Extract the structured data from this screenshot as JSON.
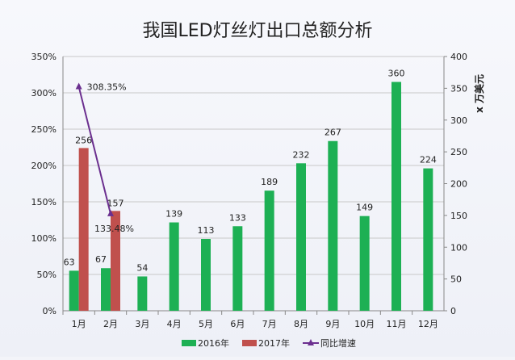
{
  "chart_data": {
    "type": "bar+line",
    "title": "我国LED灯丝灯出口总额分析",
    "categories": [
      "1月",
      "2月",
      "3月",
      "4月",
      "5月",
      "6月",
      "7月",
      "8月",
      "9月",
      "10月",
      "11月",
      "12月"
    ],
    "y2label": "x 万美元",
    "ylim": [
      0,
      350
    ],
    "y2lim": [
      0,
      400
    ],
    "yticks": [
      "0%",
      "50%",
      "100%",
      "150%",
      "200%",
      "250%",
      "300%",
      "350%"
    ],
    "y2ticks": [
      "0",
      "50",
      "100",
      "150",
      "200",
      "250",
      "300",
      "350",
      "400"
    ],
    "grid": true,
    "legend_position": "bottom",
    "series": [
      {
        "name": "2016年",
        "type": "bar",
        "axis": "right",
        "color": "#1db054",
        "values": [
          63,
          67,
          54,
          139,
          113,
          133,
          189,
          232,
          267,
          149,
          360,
          224
        ]
      },
      {
        "name": "2017年",
        "type": "bar",
        "axis": "right",
        "color": "#c0504d",
        "values": [
          256,
          157,
          null,
          null,
          null,
          null,
          null,
          null,
          null,
          null,
          null,
          null
        ]
      },
      {
        "name": "同比增速",
        "type": "line",
        "axis": "left",
        "color": "#6b2f8f",
        "values": [
          308.35,
          133.48,
          null,
          null,
          null,
          null,
          null,
          null,
          null,
          null,
          null,
          null
        ],
        "labels": [
          "308.35%",
          "133.48%"
        ]
      }
    ]
  }
}
